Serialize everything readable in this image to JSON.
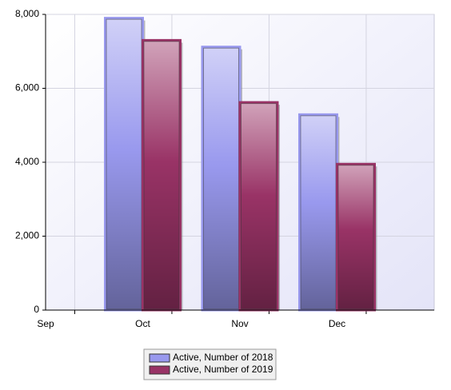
{
  "chart_data": {
    "type": "bar",
    "categories": [
      "Sep",
      "Oct",
      "Nov",
      "Dec"
    ],
    "series": [
      {
        "name": "Active, Number of 2018",
        "color": "#9999ee",
        "values": [
          null,
          7900,
          7120,
          5290
        ]
      },
      {
        "name": "Active, Number of 2019",
        "color": "#993366",
        "values": [
          null,
          7300,
          5620,
          3950
        ]
      }
    ],
    "ylim": [
      0,
      8000
    ],
    "yticks": [
      0,
      {
        "value": 2000,
        "label": "2,000"
      },
      {
        "value": 4000,
        "label": "4,000"
      },
      {
        "value": 6000,
        "label": "6,000"
      },
      {
        "value": 8000,
        "label": "8,000"
      }
    ],
    "grid": true
  }
}
